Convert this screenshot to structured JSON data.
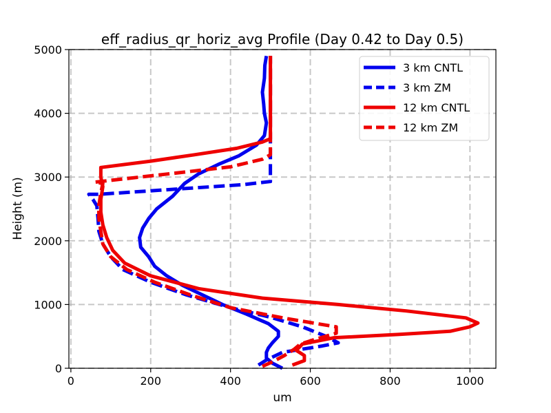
{
  "chart_data": {
    "type": "line",
    "title": "eff_radius_qr_horiz_avg Profile (Day 0.42 to Day 0.5)",
    "xlabel": "um",
    "ylabel": "Height (m)",
    "xlim": [
      -5,
      1065
    ],
    "ylim": [
      0,
      5000
    ],
    "xticks": [
      0,
      200,
      400,
      600,
      800,
      1000
    ],
    "yticks": [
      0,
      1000,
      2000,
      3000,
      4000,
      5000
    ],
    "grid": true,
    "legend_position": "top-right",
    "series": [
      {
        "name": "3 km CNTL",
        "color": "#0000ee",
        "dash": "solid",
        "points": [
          [
            530,
            0
          ],
          [
            505,
            80
          ],
          [
            490,
            160
          ],
          [
            490,
            250
          ],
          [
            495,
            320
          ],
          [
            505,
            400
          ],
          [
            520,
            500
          ],
          [
            520,
            580
          ],
          [
            495,
            700
          ],
          [
            440,
            850
          ],
          [
            380,
            1000
          ],
          [
            330,
            1150
          ],
          [
            280,
            1300
          ],
          [
            240,
            1450
          ],
          [
            210,
            1600
          ],
          [
            195,
            1750
          ],
          [
            175,
            1900
          ],
          [
            172,
            2050
          ],
          [
            180,
            2200
          ],
          [
            195,
            2350
          ],
          [
            215,
            2500
          ],
          [
            255,
            2700
          ],
          [
            285,
            2900
          ],
          [
            320,
            3050
          ],
          [
            370,
            3200
          ],
          [
            420,
            3330
          ],
          [
            465,
            3500
          ],
          [
            485,
            3650
          ],
          [
            490,
            3850
          ],
          [
            485,
            4000
          ],
          [
            483,
            4150
          ],
          [
            480,
            4330
          ],
          [
            485,
            4550
          ],
          [
            486,
            4750
          ],
          [
            490,
            4900
          ]
        ]
      },
      {
        "name": "3 km ZM",
        "color": "#0000ee",
        "dash": "dashed",
        "points": [
          [
            470,
            50
          ],
          [
            490,
            130
          ],
          [
            530,
            250
          ],
          [
            630,
            350
          ],
          [
            670,
            400
          ],
          [
            640,
            500
          ],
          [
            580,
            650
          ],
          [
            500,
            800
          ],
          [
            400,
            950
          ],
          [
            290,
            1150
          ],
          [
            200,
            1350
          ],
          [
            130,
            1550
          ],
          [
            100,
            1750
          ],
          [
            80,
            1950
          ],
          [
            70,
            2150
          ],
          [
            68,
            2350
          ],
          [
            65,
            2550
          ],
          [
            55,
            2650
          ],
          [
            45,
            2730
          ],
          [
            72,
            2730
          ],
          [
            430,
            2880
          ],
          [
            500,
            2930
          ],
          [
            500,
            3100
          ],
          [
            500,
            3300
          ],
          [
            500,
            3500
          ],
          [
            500,
            3700
          ],
          [
            500,
            3900
          ],
          [
            500,
            4100
          ],
          [
            500,
            4300
          ],
          [
            500,
            4500
          ],
          [
            500,
            4700
          ],
          [
            500,
            4900
          ]
        ]
      },
      {
        "name": "12 km CNTL",
        "color": "#ee0000",
        "dash": "solid",
        "points": [
          [
            555,
            50
          ],
          [
            585,
            120
          ],
          [
            585,
            200
          ],
          [
            565,
            280
          ],
          [
            580,
            380
          ],
          [
            660,
            480
          ],
          [
            820,
            530
          ],
          [
            950,
            580
          ],
          [
            1000,
            650
          ],
          [
            1020,
            710
          ],
          [
            990,
            790
          ],
          [
            840,
            900
          ],
          [
            670,
            1000
          ],
          [
            480,
            1100
          ],
          [
            320,
            1250
          ],
          [
            200,
            1450
          ],
          [
            135,
            1650
          ],
          [
            105,
            1850
          ],
          [
            90,
            2050
          ],
          [
            80,
            2250
          ],
          [
            75,
            2450
          ],
          [
            75,
            2650
          ],
          [
            80,
            2850
          ],
          [
            75,
            3000
          ],
          [
            75,
            3150
          ],
          [
            200,
            3250
          ],
          [
            310,
            3350
          ],
          [
            415,
            3450
          ],
          [
            480,
            3550
          ],
          [
            500,
            3600
          ],
          [
            500,
            3800
          ],
          [
            500,
            4000
          ],
          [
            500,
            4200
          ],
          [
            500,
            4400
          ],
          [
            500,
            4600
          ],
          [
            500,
            4800
          ],
          [
            500,
            4900
          ]
        ]
      },
      {
        "name": "12 km ZM",
        "color": "#ee0000",
        "dash": "dashed",
        "points": [
          [
            480,
            30
          ],
          [
            505,
            100
          ],
          [
            535,
            200
          ],
          [
            560,
            300
          ],
          [
            575,
            380
          ],
          [
            610,
            450
          ],
          [
            665,
            550
          ],
          [
            665,
            650
          ],
          [
            540,
            780
          ],
          [
            400,
            950
          ],
          [
            300,
            1150
          ],
          [
            210,
            1350
          ],
          [
            140,
            1550
          ],
          [
            100,
            1750
          ],
          [
            80,
            1950
          ],
          [
            75,
            2150
          ],
          [
            70,
            2350
          ],
          [
            70,
            2550
          ],
          [
            75,
            2750
          ],
          [
            80,
            2900
          ],
          [
            60,
            2920
          ],
          [
            260,
            3060
          ],
          [
            400,
            3160
          ],
          [
            480,
            3280
          ],
          [
            500,
            3350
          ],
          [
            500,
            3550
          ],
          [
            500,
            3800
          ],
          [
            500,
            4000
          ],
          [
            500,
            4200
          ],
          [
            500,
            4400
          ],
          [
            500,
            4600
          ],
          [
            500,
            4800
          ],
          [
            500,
            4900
          ]
        ]
      }
    ]
  }
}
